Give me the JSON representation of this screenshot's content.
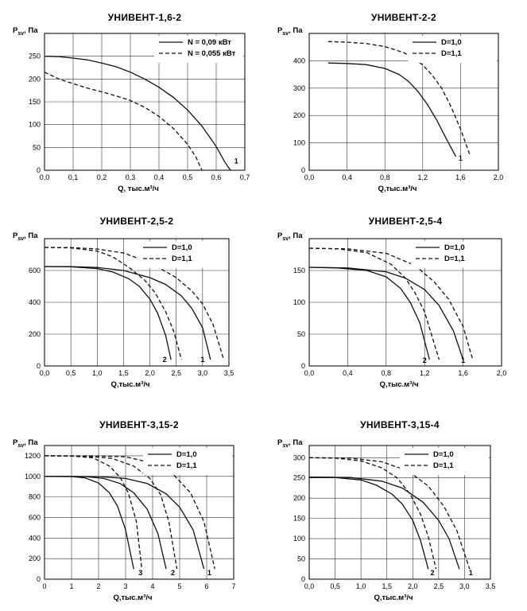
{
  "chart_data": [
    {
      "type": "line",
      "title": "УНИВЕНТ-1,6-2",
      "ylabel_main": "P",
      "ylabel_sub": "sv",
      "ylabel_unit": ", Па",
      "xlabel": "Q, тыс.м³/ч",
      "xlim": [
        0,
        0.7
      ],
      "ylim": [
        0,
        300
      ],
      "xticks": [
        "0,0",
        "0,1",
        "0,2",
        "0,3",
        "0,4",
        "0,5",
        "0,6",
        "0,7"
      ],
      "xtick_values": [
        0,
        0.1,
        0.2,
        0.3,
        0.4,
        0.5,
        0.6,
        0.7
      ],
      "yticks": [
        "0",
        "50",
        "100",
        "150",
        "200",
        "250"
      ],
      "ytick_values": [
        0,
        50,
        100,
        150,
        200,
        250
      ],
      "grid": true,
      "legend": "top-right",
      "series": [
        {
          "name": "N = 0,09 кВт",
          "style": "solid",
          "label": "1",
          "x": [
            0,
            0.05,
            0.1,
            0.15,
            0.2,
            0.25,
            0.3,
            0.35,
            0.4,
            0.45,
            0.5,
            0.55,
            0.6,
            0.63,
            0.65
          ],
          "y": [
            250,
            249,
            246,
            242,
            235,
            227,
            215,
            200,
            182,
            160,
            132,
            97,
            52,
            18,
            0
          ]
        },
        {
          "name": "N = 0,055 кВт",
          "style": "dashed",
          "label": "",
          "x": [
            0,
            0.05,
            0.1,
            0.15,
            0.2,
            0.25,
            0.3,
            0.35,
            0.4,
            0.45,
            0.5,
            0.53,
            0.55
          ],
          "y": [
            215,
            200,
            190,
            180,
            172,
            163,
            153,
            138,
            118,
            92,
            57,
            28,
            0
          ]
        }
      ],
      "curve_labels": [
        {
          "text": "1",
          "x": 0.67,
          "y": 15
        }
      ]
    },
    {
      "type": "line",
      "title": "УНИВЕНТ-2-2",
      "ylabel_main": "P",
      "ylabel_sub": "sv",
      "ylabel_unit": ", Па",
      "xlabel": "Q,тыс.м³/ч",
      "xlim": [
        0,
        2.0
      ],
      "ylim": [
        0,
        500
      ],
      "xticks": [
        "0,0",
        "0,4",
        "0,8",
        "1,2",
        "1,6",
        "2,0"
      ],
      "xtick_values": [
        0,
        0.4,
        0.8,
        1.2,
        1.6,
        2.0
      ],
      "yticks": [
        "0",
        "100",
        "200",
        "300",
        "400"
      ],
      "ytick_values": [
        0,
        100,
        200,
        300,
        400
      ],
      "grid": true,
      "legend": "top-right",
      "series": [
        {
          "name": "D=1,0",
          "style": "solid",
          "label": "",
          "x": [
            0.2,
            0.4,
            0.6,
            0.8,
            0.95,
            1.05,
            1.15,
            1.25,
            1.35,
            1.45,
            1.55
          ],
          "y": [
            392,
            390,
            386,
            372,
            350,
            325,
            288,
            240,
            182,
            115,
            50
          ]
        },
        {
          "name": "D=1,1",
          "style": "dashed",
          "label": "",
          "x": [
            0.2,
            0.4,
            0.6,
            0.8,
            1.0,
            1.1,
            1.2,
            1.3,
            1.4,
            1.5,
            1.6,
            1.7
          ],
          "y": [
            470,
            468,
            463,
            452,
            430,
            410,
            385,
            347,
            300,
            232,
            150,
            55
          ]
        }
      ],
      "curve_labels": [
        {
          "text": "1",
          "x": 1.6,
          "y": 35
        }
      ]
    },
    {
      "type": "line",
      "title": "УНИВЕНТ-2,5-2",
      "ylabel_main": "P",
      "ylabel_sub": "sv",
      "ylabel_unit": ", Па",
      "xlabel": "Q,тыс.м³/ч",
      "xlim": [
        0,
        3.5
      ],
      "ylim": [
        0,
        800
      ],
      "xticks": [
        "0,0",
        "0,5",
        "1,0",
        "1,5",
        "2,0",
        "2,5",
        "3,0",
        "3,5"
      ],
      "xtick_values": [
        0,
        0.5,
        1.0,
        1.5,
        2.0,
        2.5,
        3.0,
        3.5
      ],
      "yticks": [
        "0",
        "200",
        "400",
        "600"
      ],
      "ytick_values": [
        0,
        200,
        400,
        600
      ],
      "grid": true,
      "legend": "top-right",
      "series": [
        {
          "name": "D=1,0",
          "style": "solid",
          "label": "",
          "x": [
            0,
            0.5,
            1.0,
            1.3,
            1.6,
            1.8,
            2.0,
            2.15,
            2.3,
            2.4
          ],
          "y": [
            625,
            623,
            612,
            590,
            548,
            500,
            420,
            330,
            190,
            40
          ]
        },
        {
          "name": "",
          "style": "solid",
          "label": "",
          "x": [
            0,
            0.5,
            1.0,
            1.5,
            2.0,
            2.3,
            2.6,
            2.8,
            3.0,
            3.15
          ],
          "y": [
            625,
            624,
            619,
            600,
            555,
            512,
            440,
            360,
            240,
            40
          ]
        },
        {
          "name": "D=1,1",
          "style": "dashed",
          "label": "",
          "x": [
            0,
            0.5,
            1.0,
            1.3,
            1.6,
            1.9,
            2.1,
            2.3,
            2.45,
            2.6
          ],
          "y": [
            745,
            742,
            722,
            685,
            620,
            540,
            460,
            340,
            220,
            40
          ]
        },
        {
          "name": "",
          "style": "dashed",
          "label": "",
          "x": [
            0,
            0.5,
            1.0,
            1.5,
            2.0,
            2.5,
            2.8,
            3.0,
            3.2,
            3.4
          ],
          "y": [
            745,
            744,
            735,
            710,
            650,
            555,
            470,
            390,
            260,
            40
          ]
        }
      ],
      "curve_labels": [
        {
          "text": "2",
          "x": 2.28,
          "y": 25
        },
        {
          "text": "1",
          "x": 3.0,
          "y": 25
        }
      ]
    },
    {
      "type": "line",
      "title": "УНИВЕНТ-2,5-4",
      "ylabel_main": "P",
      "ylabel_sub": "sv",
      "ylabel_unit": ", Па",
      "xlabel": "Q,тыс.м³/ч",
      "xlim": [
        0,
        2.0
      ],
      "ylim": [
        0,
        200
      ],
      "xticks": [
        "0,0",
        "0,4",
        "0,8",
        "1,2",
        "1,6",
        "2,0"
      ],
      "xtick_values": [
        0,
        0.4,
        0.8,
        1.2,
        1.6,
        2.0
      ],
      "yticks": [
        "0",
        "50",
        "100",
        "150"
      ],
      "ytick_values": [
        0,
        50,
        100,
        150
      ],
      "grid": true,
      "legend": "top-right",
      "series": [
        {
          "name": "D=1,0",
          "style": "solid",
          "label": "",
          "x": [
            0,
            0.3,
            0.6,
            0.8,
            0.95,
            1.05,
            1.15,
            1.25
          ],
          "y": [
            155,
            154,
            150,
            140,
            122,
            100,
            68,
            10
          ]
        },
        {
          "name": "",
          "style": "solid",
          "label": "",
          "x": [
            0,
            0.4,
            0.8,
            1.0,
            1.2,
            1.35,
            1.5,
            1.6
          ],
          "y": [
            155,
            154,
            148,
            138,
            120,
            95,
            55,
            10
          ]
        },
        {
          "name": "D=1,1",
          "style": "dashed",
          "label": "",
          "x": [
            0,
            0.3,
            0.6,
            0.85,
            1.0,
            1.1,
            1.2,
            1.35
          ],
          "y": [
            185,
            184,
            178,
            160,
            138,
            115,
            85,
            10
          ]
        },
        {
          "name": "",
          "style": "dashed",
          "label": "",
          "x": [
            0,
            0.4,
            0.8,
            1.1,
            1.3,
            1.45,
            1.6,
            1.7
          ],
          "y": [
            185,
            184,
            177,
            158,
            132,
            105,
            62,
            10
          ]
        }
      ],
      "curve_labels": [
        {
          "text": "2",
          "x": 1.2,
          "y": 5
        },
        {
          "text": "1",
          "x": 1.6,
          "y": 5
        }
      ]
    },
    {
      "type": "line",
      "title": "УНИВЕНТ-3,15-2",
      "ylabel_main": "P",
      "ylabel_sub": "sv",
      "ylabel_unit": ", Па",
      "xlabel": "Q,тыс.м³/ч",
      "xlim": [
        0,
        7
      ],
      "ylim": [
        0,
        1300
      ],
      "xticks": [
        "0",
        "1",
        "2",
        "3",
        "4",
        "5",
        "6",
        "7"
      ],
      "xtick_values": [
        0,
        1,
        2,
        3,
        4,
        5,
        6,
        7
      ],
      "yticks": [
        "0",
        "200",
        "400",
        "600",
        "800",
        "1000",
        "1200"
      ],
      "ytick_values": [
        0,
        200,
        400,
        600,
        800,
        1000,
        1200
      ],
      "grid": true,
      "legend": "top-right",
      "series": [
        {
          "name": "D=1,0",
          "style": "solid",
          "label": "",
          "x": [
            0,
            1,
            1.5,
            2,
            2.4,
            2.7,
            3.0,
            3.3
          ],
          "y": [
            1000,
            998,
            985,
            935,
            840,
            710,
            480,
            100
          ]
        },
        {
          "name": "",
          "style": "solid",
          "label": "",
          "x": [
            0,
            1.5,
            2.2,
            2.8,
            3.3,
            3.8,
            4.2,
            4.5
          ],
          "y": [
            1000,
            998,
            980,
            930,
            840,
            680,
            440,
            100
          ]
        },
        {
          "name": "",
          "style": "solid",
          "label": "",
          "x": [
            0,
            2,
            3,
            3.8,
            4.5,
            5.0,
            5.5,
            5.9
          ],
          "y": [
            1000,
            998,
            980,
            930,
            830,
            700,
            480,
            100
          ]
        },
        {
          "name": "D=1,1",
          "style": "dashed",
          "label": "",
          "x": [
            0,
            1,
            1.8,
            2.4,
            2.8,
            3.1,
            3.4,
            3.6
          ],
          "y": [
            1200,
            1198,
            1180,
            1100,
            990,
            840,
            560,
            100
          ]
        },
        {
          "name": "",
          "style": "dashed",
          "label": "",
          "x": [
            0,
            1.5,
            2.5,
            3.3,
            3.9,
            4.3,
            4.6,
            4.9
          ],
          "y": [
            1200,
            1198,
            1175,
            1100,
            980,
            820,
            560,
            100
          ]
        },
        {
          "name": "",
          "style": "dashed",
          "label": "",
          "x": [
            0,
            2,
            3,
            4,
            4.8,
            5.4,
            5.9,
            6.3
          ],
          "y": [
            1200,
            1199,
            1190,
            1130,
            1010,
            840,
            560,
            100
          ]
        }
      ],
      "curve_labels": [
        {
          "text": "3",
          "x": 3.55,
          "y": 40
        },
        {
          "text": "2",
          "x": 4.75,
          "y": 40
        },
        {
          "text": "1",
          "x": 6.1,
          "y": 40
        }
      ]
    },
    {
      "type": "line",
      "title": "УНИВЕНТ-3,15-4",
      "ylabel_main": "P",
      "ylabel_sub": "sv",
      "ylabel_unit": ", Па",
      "xlabel": "Q,тыс.м³/ч",
      "xlim": [
        0,
        3.5
      ],
      "ylim": [
        0,
        330
      ],
      "xticks": [
        "0,0",
        "0,5",
        "1,0",
        "1,5",
        "2,0",
        "2,5",
        "3,0",
        "3,5"
      ],
      "xtick_values": [
        0,
        0.5,
        1.0,
        1.5,
        2.0,
        2.5,
        3.0,
        3.5
      ],
      "yticks": [
        "0",
        "50",
        "100",
        "150",
        "200",
        "250",
        "300"
      ],
      "ytick_values": [
        0,
        50,
        100,
        150,
        200,
        250,
        300
      ],
      "grid": true,
      "legend": "top-right",
      "series": [
        {
          "name": "D=1,0",
          "style": "solid",
          "label": "",
          "x": [
            0,
            0.5,
            1.0,
            1.3,
            1.6,
            1.8,
            2.0,
            2.15,
            2.3
          ],
          "y": [
            252,
            251,
            245,
            232,
            210,
            185,
            145,
            95,
            25
          ]
        },
        {
          "name": "",
          "style": "solid",
          "label": "",
          "x": [
            0,
            0.8,
            1.4,
            1.8,
            2.2,
            2.5,
            2.7,
            2.9
          ],
          "y": [
            252,
            251,
            242,
            225,
            190,
            145,
            100,
            25
          ]
        },
        {
          "name": "D=1,1",
          "style": "dashed",
          "label": "",
          "x": [
            0,
            0.5,
            1.0,
            1.4,
            1.7,
            1.95,
            2.15,
            2.3,
            2.45
          ],
          "y": [
            300,
            299,
            292,
            275,
            250,
            210,
            160,
            105,
            25
          ]
        },
        {
          "name": "",
          "style": "dashed",
          "label": "",
          "x": [
            0,
            0.8,
            1.4,
            1.9,
            2.3,
            2.6,
            2.85,
            3.1
          ],
          "y": [
            300,
            299,
            290,
            268,
            230,
            180,
            120,
            25
          ]
        }
      ],
      "curve_labels": [
        {
          "text": "2",
          "x": 2.38,
          "y": 10
        },
        {
          "text": "1",
          "x": 3.12,
          "y": 10
        }
      ]
    }
  ]
}
